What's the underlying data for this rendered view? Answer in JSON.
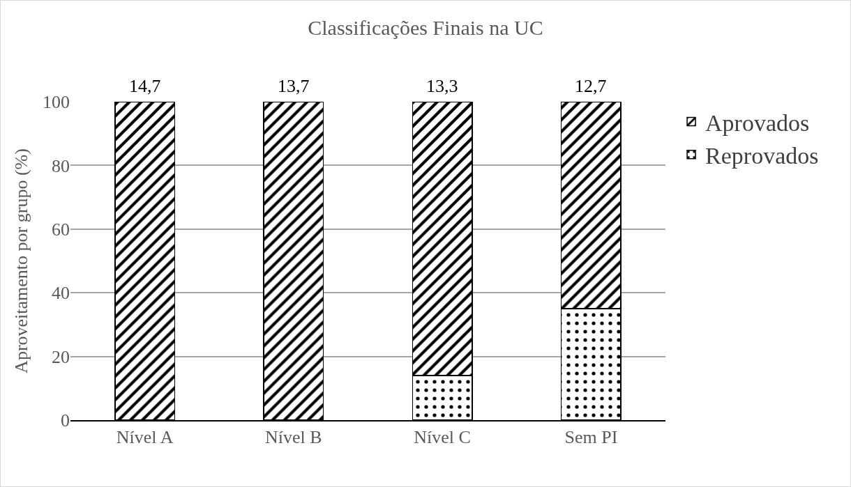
{
  "chart_data": {
    "type": "bar",
    "title": "Classificações Finais na UC",
    "ylabel": "Aproveitamento por grupo (%)",
    "categories": [
      "Nível A",
      "Nível B",
      "Nível C",
      "Sem PI"
    ],
    "stacked": true,
    "series": [
      {
        "name": "Reprovados",
        "color": "#000000",
        "values": [
          0,
          0,
          14,
          35
        ]
      },
      {
        "name": "Aprovados",
        "color": "#000000",
        "values": [
          100,
          100,
          86,
          65
        ]
      }
    ],
    "annotations": [
      {
        "text": "14,7",
        "x": "Nível A",
        "y": 100
      },
      {
        "text": "13,7",
        "x": "Nível B",
        "y": 100
      },
      {
        "text": "13,3",
        "x": "Nível C",
        "y": 100
      },
      {
        "text": "12,7",
        "x": "Sem PI",
        "y": 100
      }
    ],
    "ylim": [
      0,
      100
    ],
    "yticks": [
      0,
      20,
      40,
      60,
      80,
      100
    ],
    "grid": "y",
    "legend": "right"
  }
}
